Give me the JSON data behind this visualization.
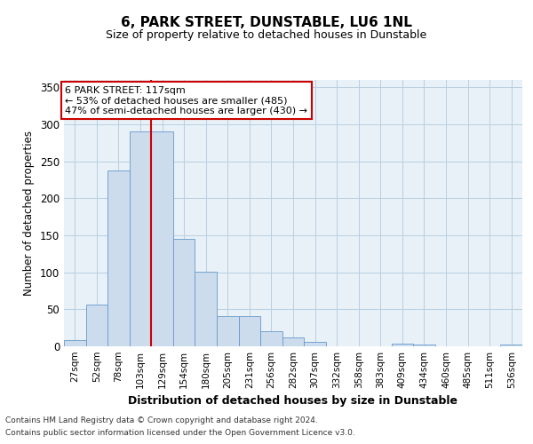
{
  "title": "6, PARK STREET, DUNSTABLE, LU6 1NL",
  "subtitle": "Size of property relative to detached houses in Dunstable",
  "xlabel": "Distribution of detached houses by size in Dunstable",
  "ylabel": "Number of detached properties",
  "bar_labels": [
    "27sqm",
    "52sqm",
    "78sqm",
    "103sqm",
    "129sqm",
    "154sqm",
    "180sqm",
    "205sqm",
    "231sqm",
    "256sqm",
    "282sqm",
    "307sqm",
    "332sqm",
    "358sqm",
    "383sqm",
    "409sqm",
    "434sqm",
    "460sqm",
    "485sqm",
    "511sqm",
    "536sqm"
  ],
  "bar_values": [
    8,
    57,
    238,
    291,
    291,
    145,
    101,
    41,
    41,
    21,
    12,
    6,
    0,
    0,
    0,
    4,
    2,
    0,
    0,
    0,
    3
  ],
  "bar_color": "#ccdcec",
  "bar_edge_color": "#6699cc",
  "property_line_x": 3.5,
  "property_line_color": "#cc0000",
  "annotation_text": "6 PARK STREET: 117sqm\n← 53% of detached houses are smaller (485)\n47% of semi-detached houses are larger (430) →",
  "annotation_box_facecolor": "#ffffff",
  "annotation_box_edgecolor": "#cc0000",
  "ylim": [
    0,
    360
  ],
  "yticks": [
    0,
    50,
    100,
    150,
    200,
    250,
    300,
    350
  ],
  "grid_color": "#b8cfe0",
  "bg_color": "#e8f0f8",
  "footer1": "Contains HM Land Registry data © Crown copyright and database right 2024.",
  "footer2": "Contains public sector information licensed under the Open Government Licence v3.0."
}
